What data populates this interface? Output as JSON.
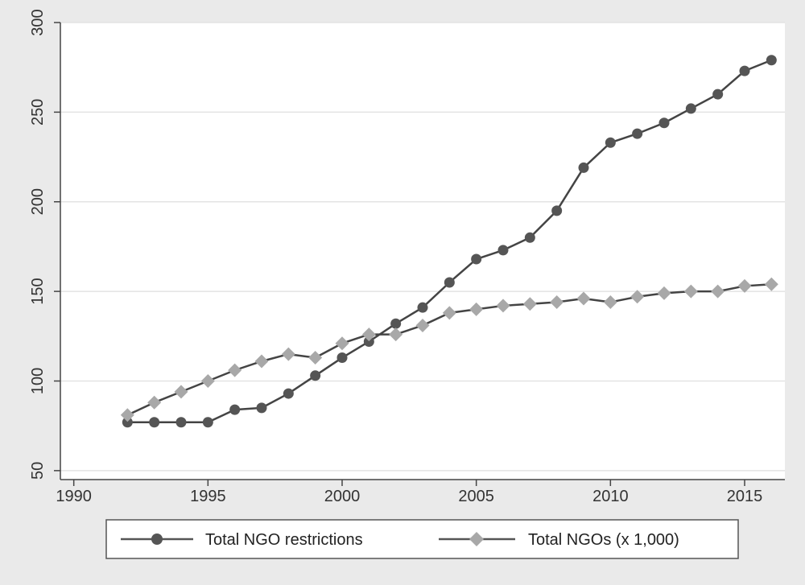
{
  "chart_data": {
    "type": "line",
    "title": "",
    "xlabel": "",
    "ylabel": "",
    "xlim": [
      1989.5,
      2016.5
    ],
    "ylim": [
      45,
      300
    ],
    "x_ticks": [
      1990,
      1995,
      2000,
      2005,
      2010,
      2015
    ],
    "y_ticks": [
      50,
      100,
      150,
      200,
      250,
      300
    ],
    "grid": true,
    "legend_position": "bottom",
    "x": [
      1992,
      1993,
      1994,
      1995,
      1996,
      1997,
      1998,
      1999,
      2000,
      2001,
      2002,
      2003,
      2004,
      2005,
      2006,
      2007,
      2008,
      2009,
      2010,
      2011,
      2012,
      2013,
      2014,
      2015,
      2016
    ],
    "series": [
      {
        "name": "Total NGO restrictions",
        "marker": "circle",
        "color": "#555555",
        "values": [
          77,
          77,
          77,
          77,
          84,
          85,
          93,
          103,
          113,
          122,
          132,
          141,
          155,
          168,
          173,
          180,
          195,
          219,
          233,
          238,
          244,
          252,
          260,
          273,
          279
        ]
      },
      {
        "name": "Total NGOs (x 1,000)",
        "marker": "diamond",
        "color": "#a8a8a8",
        "values": [
          81,
          88,
          94,
          100,
          106,
          111,
          115,
          113,
          121,
          126,
          126,
          131,
          138,
          140,
          142,
          143,
          144,
          146,
          144,
          147,
          149,
          150,
          150,
          153,
          154
        ]
      }
    ]
  }
}
